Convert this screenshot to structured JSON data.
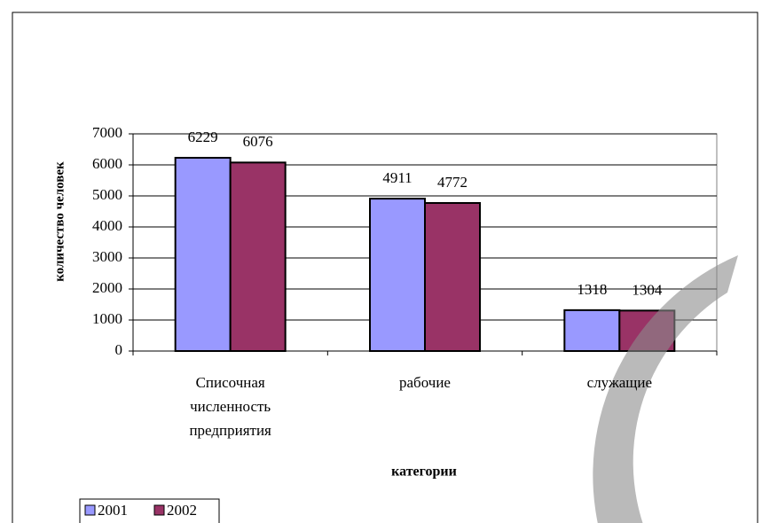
{
  "chart_data": {
    "type": "bar",
    "categories": [
      "Списочная численность предприятия",
      "рабочие",
      "служащие"
    ],
    "series": [
      {
        "name": "2001",
        "color": "#9999ff",
        "values": [
          6229,
          4911,
          1318
        ]
      },
      {
        "name": "2002",
        "color": "#993366",
        "values": [
          6076,
          4772,
          1304
        ]
      }
    ],
    "ylabel": "количество человек",
    "xlabel": "категории",
    "ylim": [
      0,
      7000
    ],
    "yticks": [
      0,
      1000,
      2000,
      3000,
      4000,
      5000,
      6000,
      7000
    ],
    "grid": true,
    "legend": "bottom-left"
  }
}
